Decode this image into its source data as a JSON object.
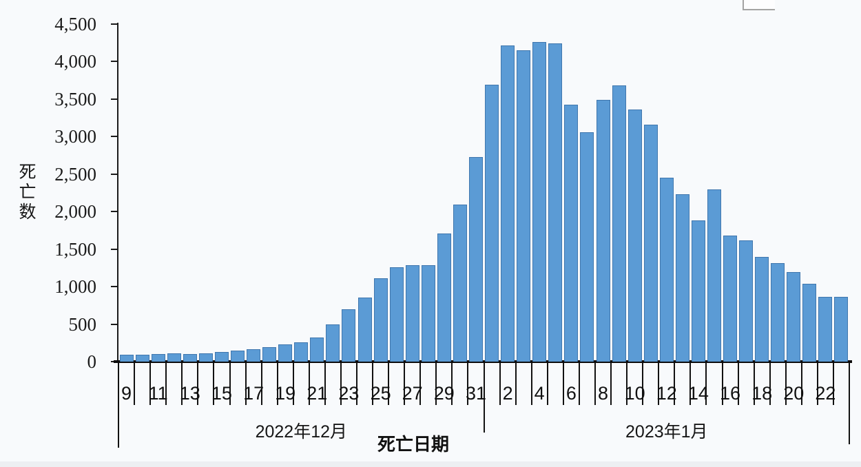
{
  "chart_data": {
    "type": "bar",
    "title": "",
    "xlabel": "死亡日期",
    "ylabel": "死亡数",
    "legend": null,
    "grid": false,
    "ylim": [
      0,
      4500
    ],
    "ytick_step": 500,
    "ytick_labels": [
      "0",
      "500",
      "1,000",
      "1,500",
      "2,000",
      "2,500",
      "3,000",
      "3,500",
      "4,000",
      "4,500"
    ],
    "bar_color": "#5b9bd5",
    "bar_border_color": "#3f76ad",
    "axis_color": "#111111",
    "month_groups": [
      {
        "label": "2022年12月",
        "count": 23
      },
      {
        "label": "2023年1月",
        "count": 23
      }
    ],
    "points": [
      {
        "date": "2022-12-09",
        "day": 9,
        "tick": "9",
        "value": 90
      },
      {
        "date": "2022-12-10",
        "day": 10,
        "tick": "",
        "value": 95
      },
      {
        "date": "2022-12-11",
        "day": 11,
        "tick": "11",
        "value": 100
      },
      {
        "date": "2022-12-12",
        "day": 12,
        "tick": "",
        "value": 110
      },
      {
        "date": "2022-12-13",
        "day": 13,
        "tick": "13",
        "value": 105
      },
      {
        "date": "2022-12-14",
        "day": 14,
        "tick": "",
        "value": 115
      },
      {
        "date": "2022-12-15",
        "day": 15,
        "tick": "15",
        "value": 130
      },
      {
        "date": "2022-12-16",
        "day": 16,
        "tick": "",
        "value": 145
      },
      {
        "date": "2022-12-17",
        "day": 17,
        "tick": "17",
        "value": 170
      },
      {
        "date": "2022-12-18",
        "day": 18,
        "tick": "",
        "value": 195
      },
      {
        "date": "2022-12-19",
        "day": 19,
        "tick": "19",
        "value": 230
      },
      {
        "date": "2022-12-20",
        "day": 20,
        "tick": "",
        "value": 260
      },
      {
        "date": "2022-12-21",
        "day": 21,
        "tick": "21",
        "value": 320
      },
      {
        "date": "2022-12-22",
        "day": 22,
        "tick": "",
        "value": 500
      },
      {
        "date": "2022-12-23",
        "day": 23,
        "tick": "23",
        "value": 700
      },
      {
        "date": "2022-12-24",
        "day": 24,
        "tick": "",
        "value": 850
      },
      {
        "date": "2022-12-25",
        "day": 25,
        "tick": "25",
        "value": 1110
      },
      {
        "date": "2022-12-26",
        "day": 26,
        "tick": "",
        "value": 1260
      },
      {
        "date": "2022-12-27",
        "day": 27,
        "tick": "27",
        "value": 1290
      },
      {
        "date": "2022-12-28",
        "day": 28,
        "tick": "",
        "value": 1290
      },
      {
        "date": "2022-12-29",
        "day": 29,
        "tick": "29",
        "value": 1710
      },
      {
        "date": "2022-12-30",
        "day": 30,
        "tick": "",
        "value": 2090
      },
      {
        "date": "2022-12-31",
        "day": 31,
        "tick": "31",
        "value": 2730
      },
      {
        "date": "2023-01-01",
        "day": 1,
        "tick": "",
        "value": 3690
      },
      {
        "date": "2023-01-02",
        "day": 2,
        "tick": "2",
        "value": 4220
      },
      {
        "date": "2023-01-03",
        "day": 3,
        "tick": "",
        "value": 4150
      },
      {
        "date": "2023-01-04",
        "day": 4,
        "tick": "4",
        "value": 4260
      },
      {
        "date": "2023-01-05",
        "day": 5,
        "tick": "",
        "value": 4240
      },
      {
        "date": "2023-01-06",
        "day": 6,
        "tick": "6",
        "value": 3430
      },
      {
        "date": "2023-01-07",
        "day": 7,
        "tick": "",
        "value": 3060
      },
      {
        "date": "2023-01-08",
        "day": 8,
        "tick": "8",
        "value": 3490
      },
      {
        "date": "2023-01-09",
        "day": 9,
        "tick": "",
        "value": 3680
      },
      {
        "date": "2023-01-10",
        "day": 10,
        "tick": "10",
        "value": 3360
      },
      {
        "date": "2023-01-11",
        "day": 11,
        "tick": "",
        "value": 3160
      },
      {
        "date": "2023-01-12",
        "day": 12,
        "tick": "12",
        "value": 2450
      },
      {
        "date": "2023-01-13",
        "day": 13,
        "tick": "",
        "value": 2230
      },
      {
        "date": "2023-01-14",
        "day": 14,
        "tick": "14",
        "value": 1880
      },
      {
        "date": "2023-01-15",
        "day": 15,
        "tick": "",
        "value": 2300
      },
      {
        "date": "2023-01-16",
        "day": 16,
        "tick": "16",
        "value": 1680
      },
      {
        "date": "2023-01-17",
        "day": 17,
        "tick": "",
        "value": 1620
      },
      {
        "date": "2023-01-18",
        "day": 18,
        "tick": "18",
        "value": 1400
      },
      {
        "date": "2023-01-19",
        "day": 19,
        "tick": "",
        "value": 1310
      },
      {
        "date": "2023-01-20",
        "day": 20,
        "tick": "20",
        "value": 1190
      },
      {
        "date": "2023-01-21",
        "day": 21,
        "tick": "",
        "value": 1040
      },
      {
        "date": "2023-01-22",
        "day": 22,
        "tick": "22",
        "value": 860
      },
      {
        "date": "2023-01-23",
        "day": 23,
        "tick": "",
        "value": 860
      }
    ]
  }
}
